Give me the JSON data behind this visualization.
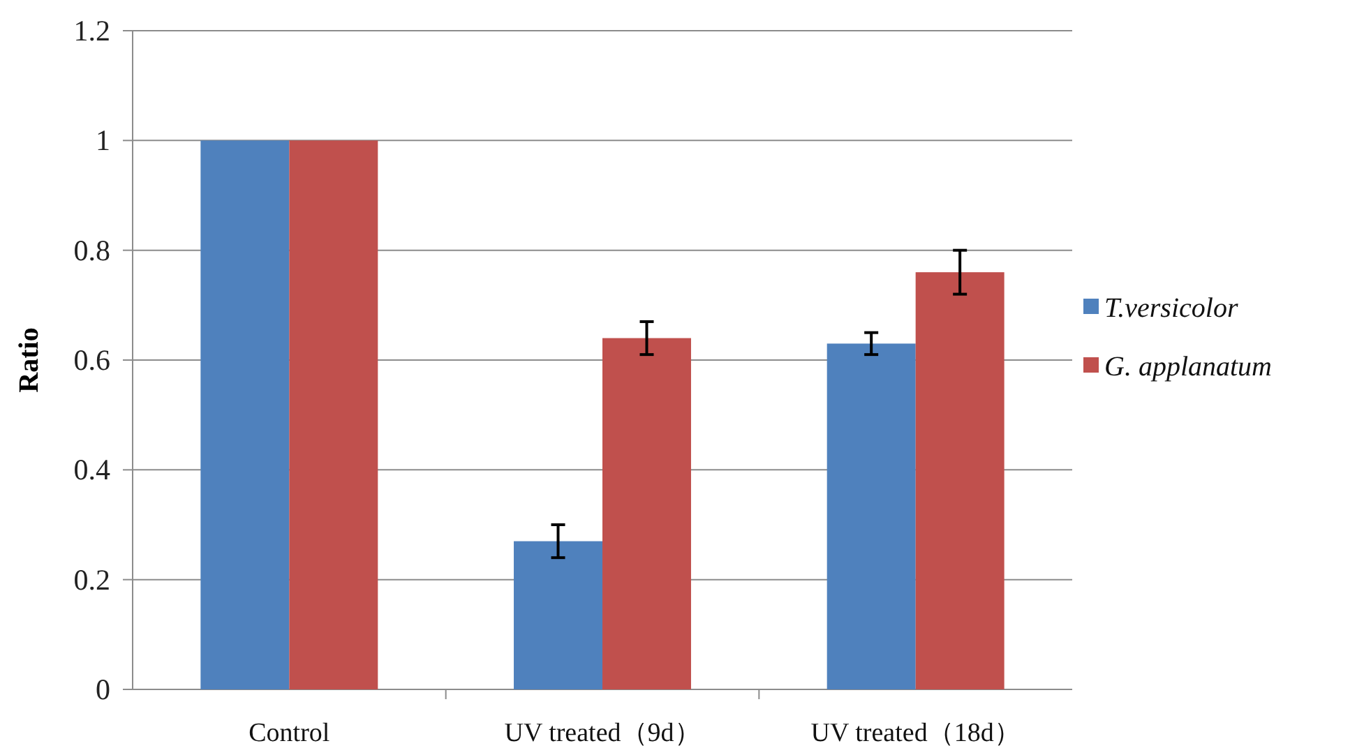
{
  "chart_data": {
    "type": "bar",
    "ylabel": "Ratio",
    "categories": [
      "Control",
      "UV treated（9d）",
      "UV treated（18d）"
    ],
    "series": [
      {
        "name": "T.versicolor",
        "color": "#4f81bd",
        "values": [
          1,
          0.27,
          0.63
        ],
        "errors": [
          null,
          0.03,
          0.02
        ]
      },
      {
        "name": "G. applanatum",
        "color": "#c0504d",
        "values": [
          1,
          0.64,
          0.76
        ],
        "errors": [
          null,
          0.03,
          0.04
        ]
      }
    ],
    "ylim": [
      0,
      1.2
    ],
    "yticks": [
      0,
      0.2,
      0.4,
      0.6,
      0.8,
      1,
      1.2
    ],
    "grid": "y",
    "legend": "right"
  }
}
